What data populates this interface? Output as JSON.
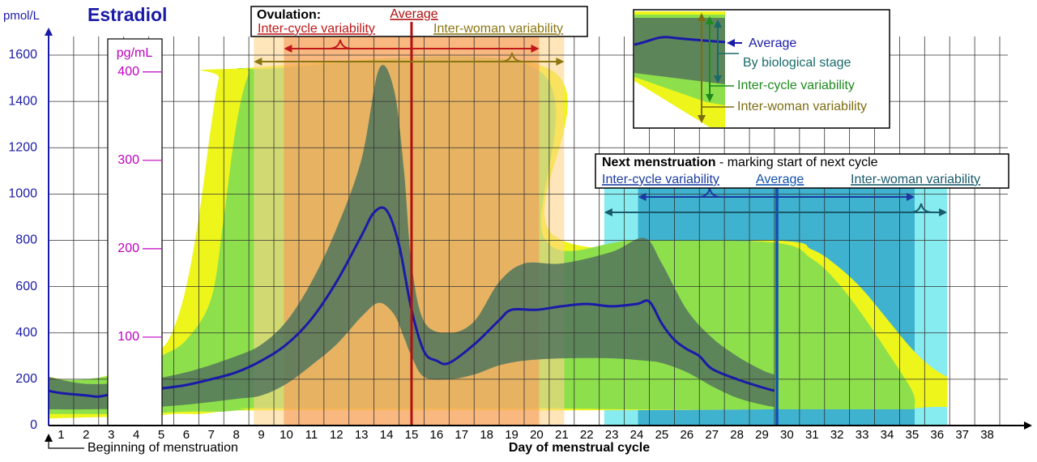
{
  "chart_data": {
    "type": "line",
    "title": "Estradiol",
    "y_label": "pmol/L",
    "y2_label": "pg/mL",
    "x_label": "Day of menstrual cycle",
    "start_label": "Beginning of menstruation",
    "xlim": [
      0.5,
      38.5
    ],
    "xticks": [
      1,
      2,
      3,
      4,
      5,
      6,
      7,
      8,
      9,
      10,
      11,
      12,
      13,
      14,
      15,
      16,
      17,
      18,
      19,
      20,
      21,
      22,
      23,
      24,
      25,
      26,
      27,
      28,
      29,
      30,
      31,
      32,
      33,
      34,
      35,
      36,
      37,
      38
    ],
    "ylim": [
      0,
      1600
    ],
    "yticks": [
      0,
      200,
      400,
      600,
      800,
      1000,
      1200,
      1400,
      1600
    ],
    "y2lim": [
      0,
      419
    ],
    "y2ticks": [
      100,
      200,
      300,
      400
    ],
    "grid": true,
    "series": [
      {
        "name": "Inter-woman variability",
        "color": "#eef51a",
        "label_color": "#7d6e12",
        "x": [
          0.5,
          2,
          4,
          5,
          5.5,
          6,
          6.5,
          7,
          7.3,
          7.6,
          20.5,
          20.7,
          29.5,
          31,
          32,
          33,
          34,
          35,
          35.8,
          36.4
        ],
        "upper": [
          210,
          195,
          260,
          330,
          420,
          600,
          900,
          1300,
          1500,
          1540,
          1540,
          820,
          800,
          760,
          690,
          590,
          460,
          330,
          250,
          210
        ],
        "lower": [
          30,
          35,
          40,
          45,
          50,
          50,
          50,
          55,
          60,
          65,
          65,
          65,
          70,
          70,
          72,
          75,
          75,
          75,
          80,
          80
        ]
      },
      {
        "name": "Inter-cycle variability",
        "color": "#8de04c",
        "label_color": "#1e8a1e",
        "x": [
          0.5,
          2,
          4,
          5,
          6,
          7,
          7.5,
          8,
          8.5,
          9,
          20,
          20.3,
          24,
          29.5,
          31,
          32,
          33,
          34,
          35,
          35.1
        ],
        "upper": [
          200,
          200,
          240,
          300,
          370,
          550,
          900,
          1300,
          1520,
          1540,
          1540,
          810,
          800,
          790,
          720,
          620,
          480,
          320,
          150,
          80
        ],
        "lower": [
          50,
          50,
          50,
          55,
          60,
          60,
          60,
          65,
          70,
          75,
          75,
          75,
          70,
          70,
          70,
          70,
          70,
          70,
          70,
          70
        ]
      },
      {
        "name": "By biological stage",
        "color": "#56785c",
        "label_color": "#1a6a6a",
        "x": [
          0.5,
          2,
          4,
          6,
          8,
          9,
          10,
          11,
          12,
          13,
          13.7,
          14.3,
          14.7,
          15,
          15.5,
          16.5,
          17.5,
          18.5,
          19.5,
          21,
          23,
          24.3,
          25,
          26,
          27,
          28,
          29,
          29.5
        ],
        "upper": [
          210,
          180,
          190,
          230,
          300,
          350,
          450,
          620,
          850,
          1150,
          1540,
          1450,
          1100,
          700,
          450,
          400,
          450,
          620,
          700,
          700,
          750,
          810,
          700,
          500,
          380,
          300,
          240,
          220
        ],
        "lower": [
          70,
          70,
          75,
          90,
          115,
          130,
          180,
          260,
          350,
          470,
          530,
          480,
          380,
          300,
          210,
          200,
          220,
          260,
          280,
          290,
          290,
          280,
          270,
          230,
          170,
          120,
          90,
          80
        ]
      },
      {
        "name": "Average",
        "color": "#1a1aa8",
        "label_color": "#1a1aa8",
        "x": [
          0.5,
          1,
          2,
          2.5,
          3,
          4,
          5,
          6,
          7,
          8,
          9,
          10,
          11,
          12,
          13,
          13.5,
          14,
          14.5,
          15,
          15.5,
          16,
          16.5,
          17.5,
          18.5,
          19,
          20,
          21,
          22,
          23,
          24,
          24.5,
          25,
          25.5,
          26,
          26.5,
          27,
          28,
          29,
          29.5
        ],
        "values": [
          150,
          140,
          130,
          125,
          135,
          150,
          160,
          175,
          200,
          230,
          280,
          350,
          460,
          620,
          820,
          920,
          930,
          780,
          500,
          320,
          280,
          270,
          350,
          455,
          500,
          500,
          515,
          525,
          515,
          525,
          535,
          440,
          370,
          330,
          300,
          245,
          200,
          165,
          150
        ]
      }
    ],
    "ovulation": {
      "title": "Ovulation:",
      "average": {
        "label": "Average",
        "day": 15,
        "color": "#b01010"
      },
      "inter_cycle": {
        "label": "Inter-cycle variability",
        "range": [
          9.9,
          20.1
        ],
        "color": "#f59a5a",
        "text_color": "#c01818"
      },
      "inter_woman": {
        "label": "Inter-woman variability",
        "range": [
          8.7,
          21.1
        ],
        "color": "#ffd58c",
        "text_color": "#8a7610"
      }
    },
    "next_menstruation": {
      "title": "Next menstruation",
      "subtitle": " - marking start of next cycle",
      "average": {
        "label": "Average",
        "day": 29.6,
        "color": "#1050b0"
      },
      "inter_cycle": {
        "label": "Inter-cycle variability",
        "range": [
          24.05,
          35.1
        ],
        "color": "#3fb2d0",
        "text_color": "#1a3aa0"
      },
      "inter_woman": {
        "label": "Inter-woman variability",
        "range": [
          22.7,
          36.4
        ],
        "color": "#86ecf0",
        "text_color": "#1a5a6a"
      }
    }
  }
}
